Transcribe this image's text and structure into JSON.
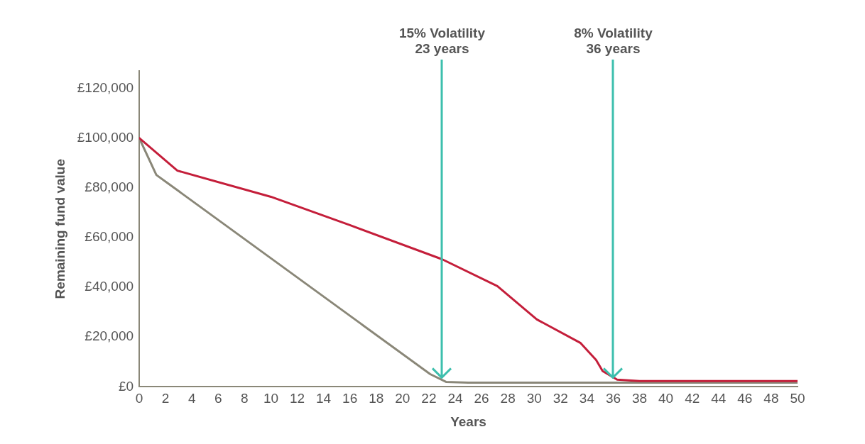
{
  "chart_data": {
    "type": "line",
    "xlabel": "Years",
    "ylabel": "Remaining fund value",
    "xlim": [
      0,
      50
    ],
    "xticks": [
      0,
      2,
      4,
      6,
      8,
      10,
      12,
      14,
      16,
      18,
      20,
      22,
      24,
      26,
      28,
      30,
      32,
      34,
      36,
      38,
      40,
      42,
      44,
      46,
      48,
      50
    ],
    "ylim": [
      0,
      127000
    ],
    "yticks": [
      {
        "value": 0,
        "label": "£0"
      },
      {
        "value": 20000,
        "label": "£20,000"
      },
      {
        "value": 40000,
        "label": "£40,000"
      },
      {
        "value": 60000,
        "label": "£60,000"
      },
      {
        "value": 80000,
        "label": "£80,000"
      },
      {
        "value": 100000,
        "label": "£100,000"
      },
      {
        "value": 120000,
        "label": "£120,000"
      }
    ],
    "grid": false,
    "legend": false,
    "marker": "none",
    "line_style": "solid",
    "series": [
      {
        "color": "#c41e3a",
        "x": [
          0,
          2.9,
          10,
          16,
          23,
          27.2,
          30.2,
          33.5,
          34.7,
          35.2,
          36.3,
          38,
          50
        ],
        "values": [
          100000,
          86900,
          76400,
          65000,
          51300,
          40500,
          27100,
          17700,
          10800,
          6300,
          2900,
          2300,
          2300
        ]
      },
      {
        "color": "#8a8778",
        "x": [
          0,
          1.3,
          22.1,
          23.3,
          25,
          50
        ],
        "values": [
          100000,
          85200,
          5100,
          2000,
          1700,
          1700
        ]
      }
    ],
    "annotations": [
      {
        "text": "15% Volatility\n23 years",
        "x": 23,
        "y": 4000
      },
      {
        "text": "8% Volatility\n36 years",
        "x": 36,
        "y": 4000
      }
    ]
  }
}
